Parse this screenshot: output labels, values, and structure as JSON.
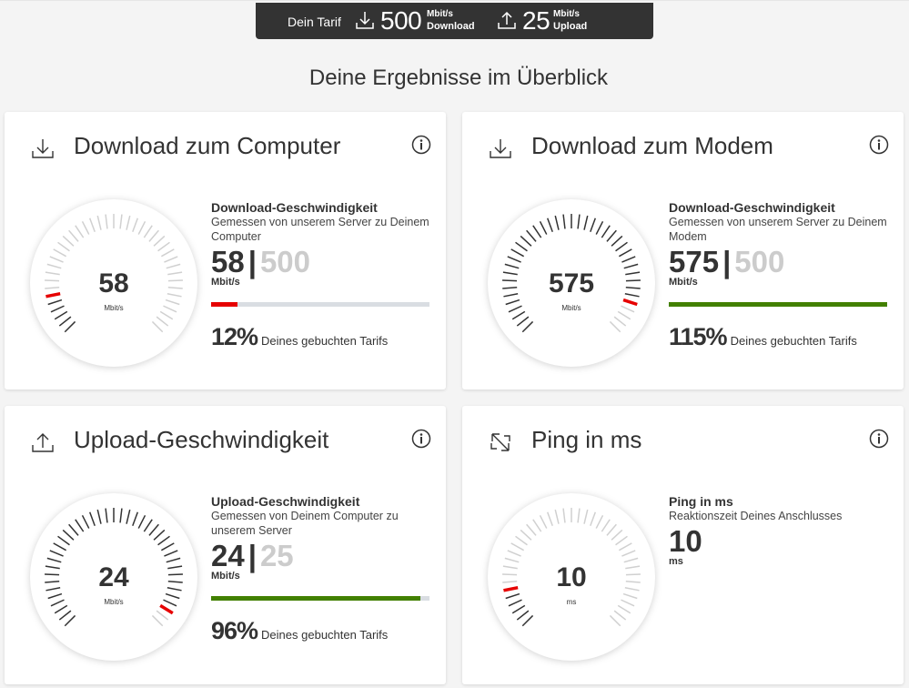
{
  "tarif": {
    "label": "Dein Tarif",
    "download_value": "500",
    "download_unit": "Mbit/s",
    "download_label": "Download",
    "upload_value": "25",
    "upload_unit": "Mbit/s",
    "upload_label": "Upload"
  },
  "headline": "Deine Ergebnisse im Überblick",
  "colors": {
    "red": "#e60000",
    "green": "#428000",
    "track": "#d9dde2",
    "tick": "#333333",
    "tick_light": "#d0d0d0"
  },
  "cards": [
    {
      "title": "Download zum Computer",
      "icon": "download-icon",
      "gauge_value": "58",
      "gauge_unit": "Mbit/s",
      "stat_heading": "Download-Geschwindigkeit",
      "stat_sub": "Gemessen von unserem Server zu Deinem Computer",
      "value": "58",
      "sep": "|",
      "max": "500",
      "unit": "Mbit/s",
      "fraction": 0.12,
      "percent": "12%",
      "percent_text": "Deines gebuchten Tarifs",
      "bar_color": "#e60000"
    },
    {
      "title": "Download zum Modem",
      "icon": "download-icon",
      "gauge_value": "575",
      "gauge_unit": "Mbit/s",
      "stat_heading": "Download-Geschwindigkeit",
      "stat_sub": "Gemessen von unserem Server zu Deinem Modem",
      "value": "575",
      "sep": "|",
      "max": "500",
      "unit": "Mbit/s",
      "fraction": 1.0,
      "gauge_fraction": 0.9,
      "percent": "115%",
      "percent_text": "Deines gebuchten Tarifs",
      "bar_color": "#428000"
    },
    {
      "title": "Upload-Geschwindigkeit",
      "icon": "upload-icon",
      "gauge_value": "24",
      "gauge_unit": "Mbit/s",
      "stat_heading": "Upload-Geschwindigkeit",
      "stat_sub": "Gemessen von Deinem Computer zu unserem Server",
      "value": "24",
      "sep": "|",
      "max": "25",
      "unit": "Mbit/s",
      "fraction": 0.96,
      "percent": "96%",
      "percent_text": "Deines gebuchten Tarifs",
      "bar_color": "#428000"
    },
    {
      "title": "Ping in ms",
      "icon": "ping-arrows-icon",
      "gauge_value": "10",
      "gauge_unit": "ms",
      "stat_heading": "Ping in ms",
      "stat_sub": "Reaktionszeit Deines Anschlusses",
      "value": "10",
      "unit": "ms",
      "gauge_fraction": 0.12
    }
  ]
}
